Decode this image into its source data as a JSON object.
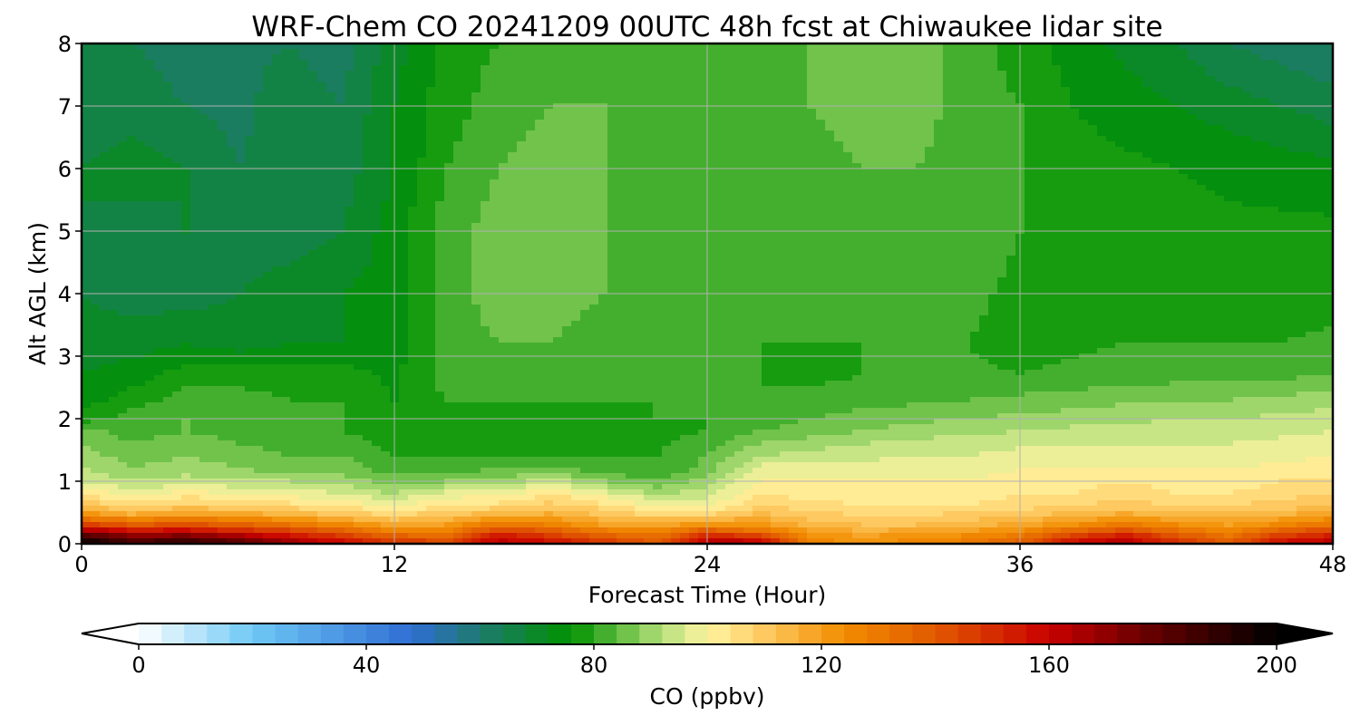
{
  "chart_data": {
    "type": "heatmap",
    "title": "WRF-Chem CO  20241209 00UTC 48h fcst at Chiwaukee lidar site",
    "xlabel": "Forecast Time (Hour)",
    "ylabel": "Alt AGL (km)",
    "xlim": [
      0,
      48
    ],
    "ylim": [
      0,
      8
    ],
    "xticks": [
      "0",
      "12",
      "24",
      "36",
      "48"
    ],
    "yticks": [
      "0",
      "1",
      "2",
      "3",
      "4",
      "5",
      "6",
      "7",
      "8"
    ],
    "grid": true,
    "colorbar": {
      "label": "CO  (ppbv)",
      "range": [
        0,
        200
      ],
      "ticks": [
        "0",
        "40",
        "80",
        "120",
        "160",
        "200"
      ],
      "extend": "both",
      "step": 4,
      "stops": [
        {
          "v": 0,
          "c": "#ffffff"
        },
        {
          "v": 20,
          "c": "#6ec8f5"
        },
        {
          "v": 48,
          "c": "#2f6ed4"
        },
        {
          "v": 60,
          "c": "#1e7a6e"
        },
        {
          "v": 76,
          "c": "#009200"
        },
        {
          "v": 92,
          "c": "#b4e07a"
        },
        {
          "v": 100,
          "c": "#fff4a0"
        },
        {
          "v": 108,
          "c": "#ffd26e"
        },
        {
          "v": 124,
          "c": "#f28c00"
        },
        {
          "v": 140,
          "c": "#e15a00"
        },
        {
          "v": 160,
          "c": "#c80000"
        },
        {
          "v": 176,
          "c": "#6e0000"
        },
        {
          "v": 200,
          "c": "#000000"
        }
      ]
    },
    "hours": [
      0,
      2,
      4,
      6,
      8,
      10,
      12,
      14,
      16,
      18,
      20,
      22,
      24,
      26,
      28,
      30,
      32,
      34,
      36,
      38,
      40,
      42,
      44,
      46,
      48
    ],
    "levels_km": [
      0,
      0.1,
      0.2,
      0.3,
      0.45,
      0.6,
      0.8,
      1.0,
      1.2,
      1.4,
      1.6,
      1.8,
      2.0,
      2.3,
      2.7,
      3.2,
      4,
      5,
      6,
      7,
      8
    ],
    "values": [
      [
        200,
        188,
        192,
        185,
        170,
        160,
        150,
        146,
        164,
        160,
        150,
        142,
        166,
        166,
        128,
        122,
        126,
        130,
        140,
        160,
        166,
        150,
        140,
        160,
        164
      ],
      [
        190,
        175,
        178,
        170,
        160,
        150,
        140,
        138,
        158,
        150,
        140,
        134,
        156,
        150,
        124,
        120,
        124,
        126,
        132,
        150,
        158,
        144,
        134,
        150,
        156
      ],
      [
        168,
        158,
        160,
        152,
        146,
        138,
        128,
        128,
        146,
        140,
        130,
        126,
        140,
        132,
        120,
        116,
        118,
        120,
        124,
        136,
        144,
        134,
        126,
        138,
        146
      ],
      [
        148,
        140,
        142,
        138,
        132,
        126,
        118,
        120,
        132,
        128,
        120,
        118,
        124,
        122,
        114,
        112,
        112,
        114,
        118,
        124,
        130,
        124,
        120,
        126,
        132
      ],
      [
        124,
        118,
        122,
        120,
        116,
        112,
        108,
        112,
        116,
        118,
        112,
        108,
        108,
        114,
        110,
        108,
        108,
        110,
        112,
        114,
        118,
        116,
        114,
        116,
        120
      ],
      [
        112,
        106,
        110,
        108,
        106,
        104,
        100,
        104,
        106,
        110,
        106,
        100,
        100,
        108,
        106,
        104,
        104,
        104,
        106,
        108,
        110,
        108,
        108,
        110,
        112
      ],
      [
        104,
        98,
        102,
        100,
        98,
        96,
        92,
        98,
        98,
        104,
        98,
        92,
        94,
        104,
        102,
        102,
        102,
        102,
        104,
        104,
        106,
        104,
        104,
        106,
        108
      ],
      [
        96,
        92,
        94,
        92,
        92,
        90,
        86,
        88,
        90,
        94,
        88,
        84,
        90,
        100,
        100,
        100,
        100,
        100,
        102,
        102,
        104,
        102,
        102,
        104,
        104
      ],
      [
        92,
        88,
        90,
        88,
        86,
        86,
        82,
        82,
        84,
        84,
        82,
        80,
        86,
        98,
        97,
        98,
        98,
        98,
        100,
        100,
        100,
        100,
        100,
        101,
        102
      ],
      [
        90,
        86,
        88,
        86,
        84,
        84,
        80,
        80,
        80,
        80,
        80,
        80,
        84,
        92,
        94,
        95,
        96,
        96,
        98,
        98,
        98,
        98,
        98,
        99,
        100
      ],
      [
        88,
        84,
        86,
        84,
        82,
        82,
        79,
        79,
        78,
        79,
        79,
        79,
        82,
        88,
        90,
        92,
        93,
        94,
        95,
        96,
        96,
        96,
        96,
        97,
        98
      ],
      [
        86,
        82,
        84,
        82,
        82,
        80,
        78,
        78,
        77,
        79,
        78,
        79,
        80,
        84,
        86,
        88,
        90,
        91,
        92,
        93,
        94,
        94,
        94,
        95,
        96
      ],
      [
        78,
        82,
        84,
        82,
        82,
        80,
        76,
        78,
        77,
        79,
        78,
        80,
        80,
        82,
        84,
        86,
        87,
        88,
        89,
        90,
        91,
        92,
        92,
        93,
        94
      ],
      [
        74,
        78,
        82,
        82,
        80,
        80,
        76,
        80,
        80,
        80,
        80,
        80,
        80,
        80,
        81,
        82,
        83,
        84,
        85,
        86,
        87,
        88,
        88,
        89,
        90
      ],
      [
        72,
        74,
        78,
        78,
        78,
        78,
        75,
        82,
        82,
        82,
        82,
        80,
        80,
        80,
        79,
        80,
        80,
        81,
        80,
        81,
        82,
        82,
        82,
        83,
        84
      ],
      [
        70,
        70,
        72,
        70,
        72,
        72,
        74,
        82,
        84,
        84,
        82,
        82,
        81,
        80,
        80,
        80,
        80,
        80,
        78,
        79,
        80,
        80,
        80,
        80,
        81
      ],
      [
        68,
        66,
        66,
        68,
        70,
        72,
        74,
        82,
        86,
        86,
        84,
        84,
        82,
        80,
        80,
        82,
        82,
        81,
        79,
        78,
        78,
        78,
        78,
        78,
        78
      ],
      [
        68,
        66,
        68,
        66,
        66,
        68,
        74,
        82,
        86,
        86,
        84,
        82,
        80,
        80,
        82,
        83,
        84,
        82,
        80,
        78,
        78,
        78,
        77,
        77,
        77
      ],
      [
        68,
        70,
        68,
        64,
        66,
        66,
        72,
        80,
        84,
        86,
        84,
        82,
        80,
        80,
        82,
        84,
        84,
        82,
        80,
        78,
        77,
        76,
        75,
        74,
        73
      ],
      [
        66,
        66,
        64,
        63,
        66,
        64,
        72,
        78,
        82,
        84,
        84,
        82,
        82,
        82,
        84,
        86,
        86,
        82,
        80,
        76,
        74,
        72,
        70,
        68,
        66
      ],
      [
        66,
        64,
        62,
        63,
        64,
        62,
        70,
        78,
        80,
        82,
        82,
        82,
        82,
        82,
        84,
        88,
        86,
        82,
        78,
        74,
        71,
        68,
        64,
        62,
        60
      ]
    ]
  }
}
